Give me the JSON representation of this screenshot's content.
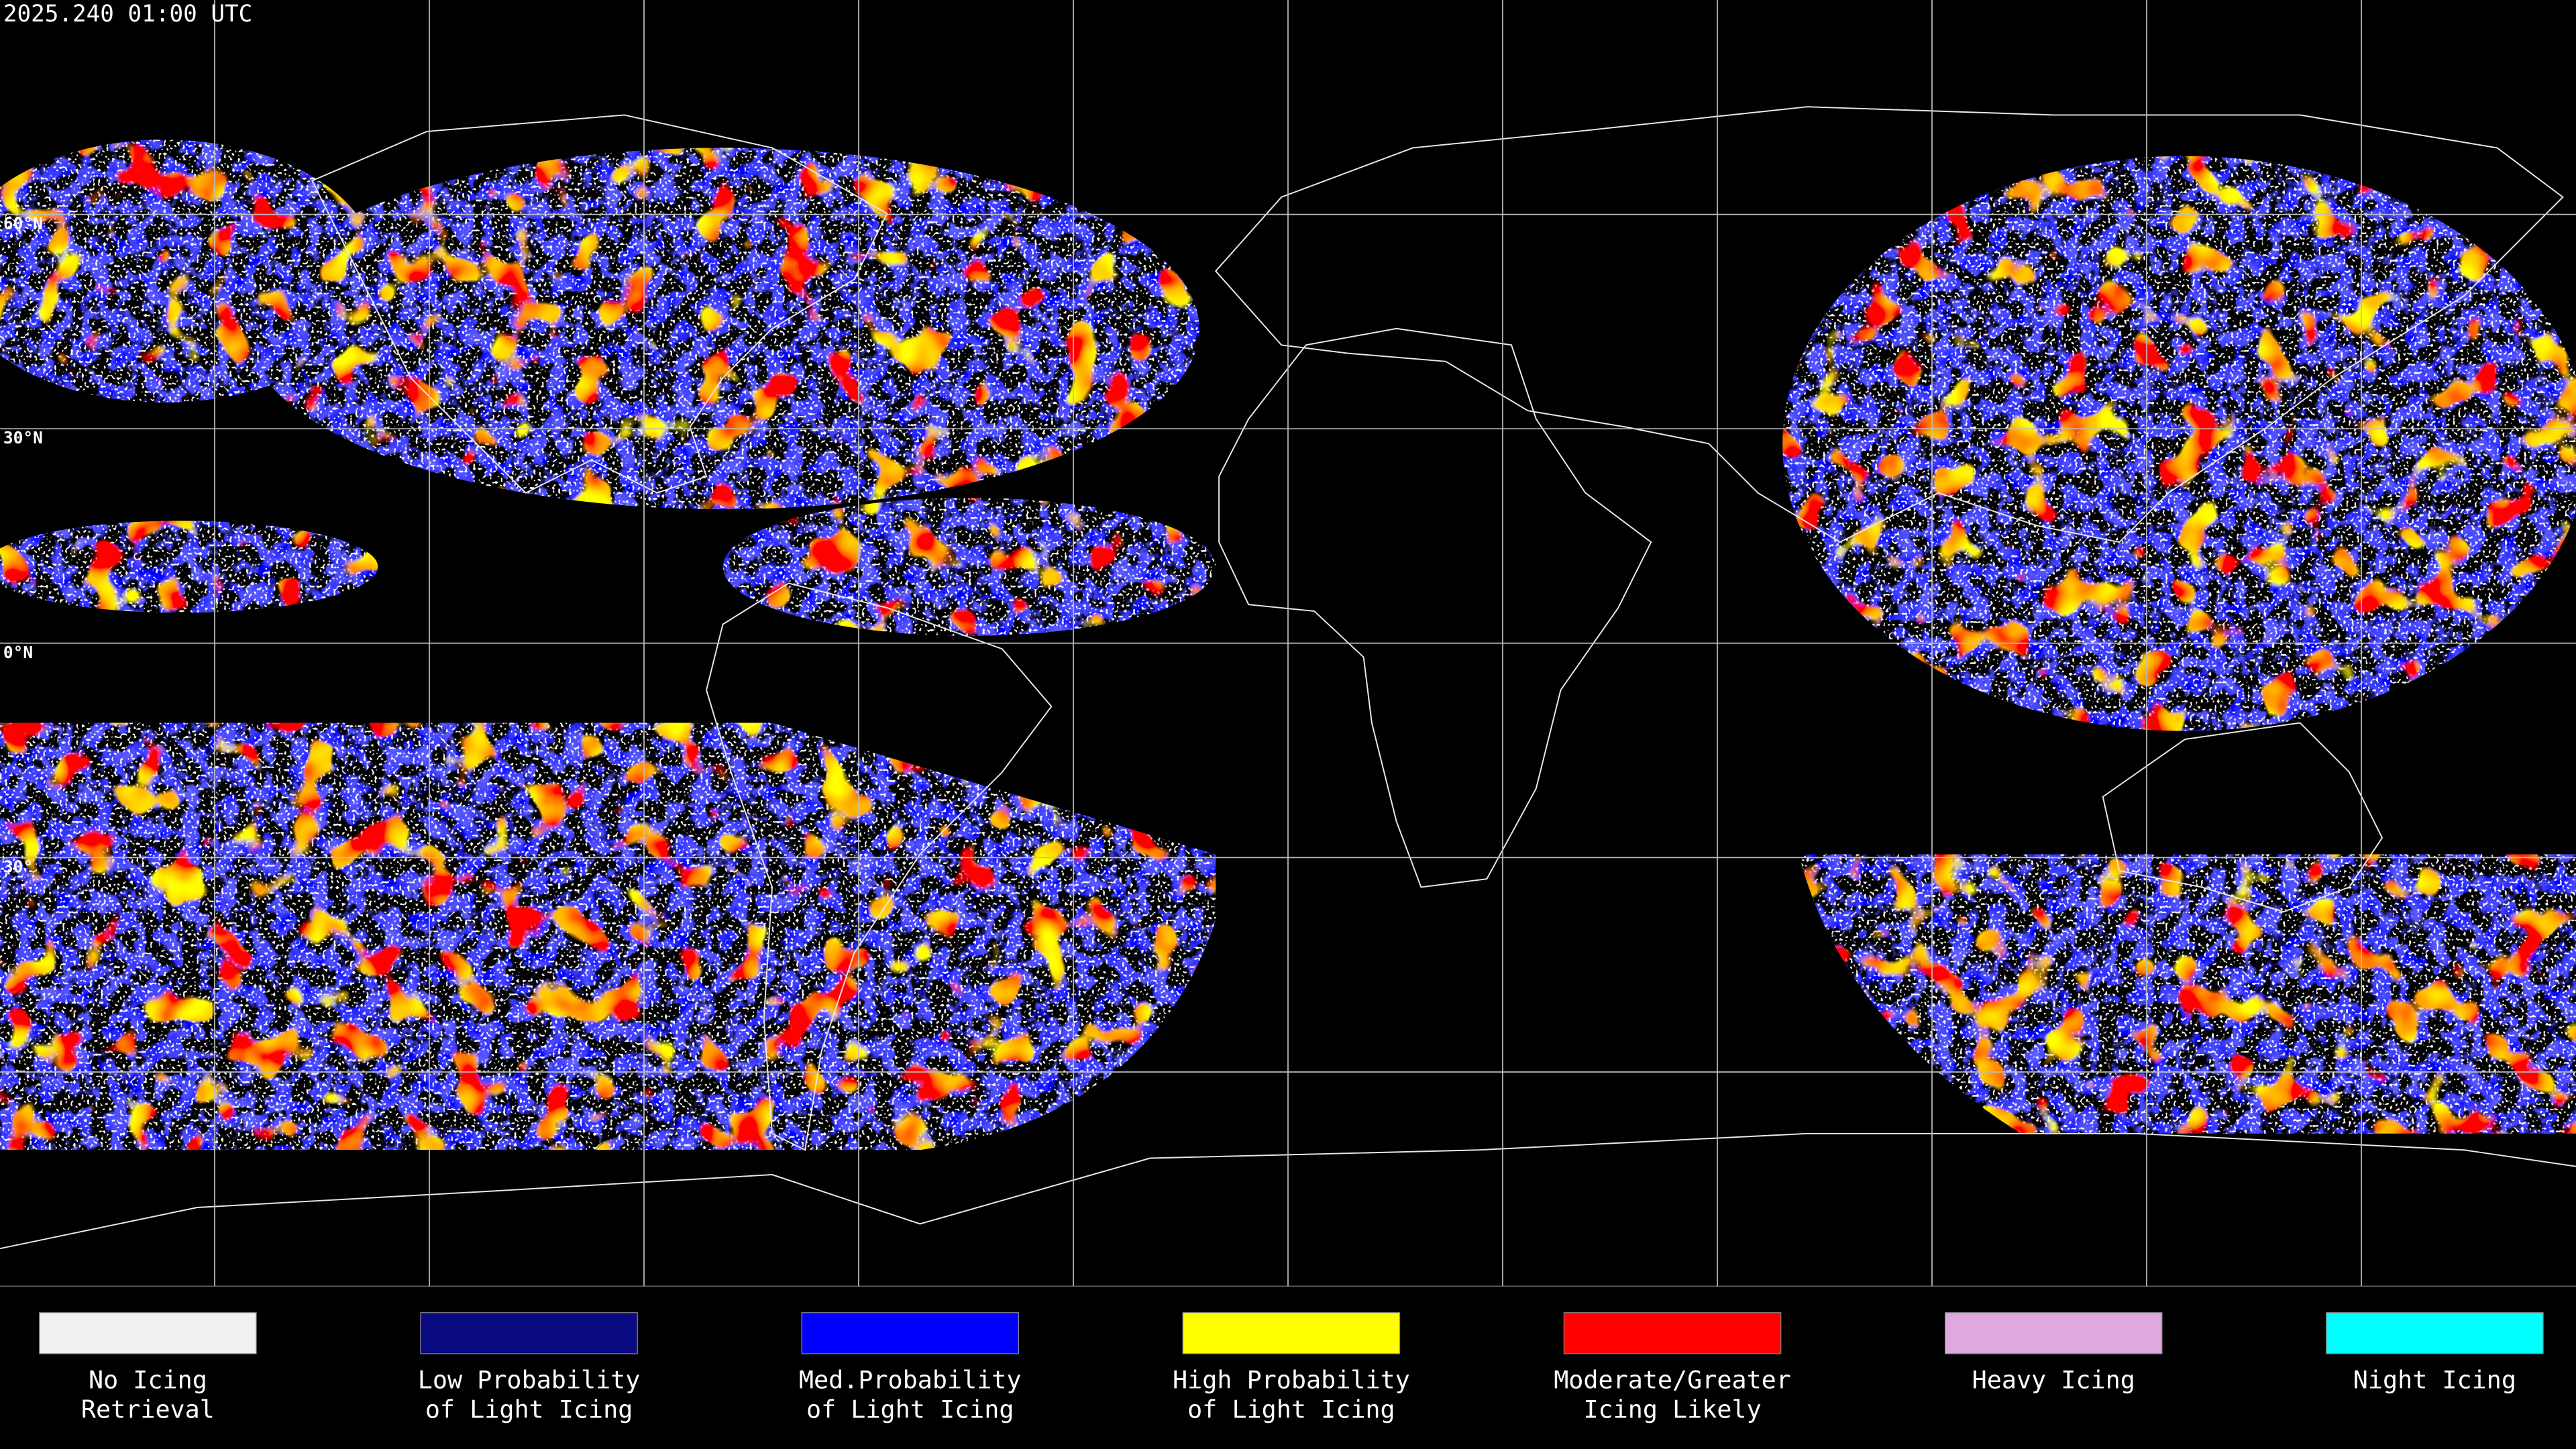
{
  "header": {
    "timestamp": "2025.240 01:00 UTC"
  },
  "map": {
    "latitude_labels": [
      "60°N",
      "30°N",
      "0°N",
      "30°"
    ]
  },
  "legend": {
    "items": [
      {
        "lines": [
          "No Icing",
          "Retrieval"
        ],
        "color": "#f0f0f0"
      },
      {
        "lines": [
          "Low Probability",
          "of Light Icing"
        ],
        "color": "#0a0a80"
      },
      {
        "lines": [
          "Med.Probability",
          "of Light Icing"
        ],
        "color": "#0000ff"
      },
      {
        "lines": [
          "High Probability",
          "of Light Icing"
        ],
        "color": "#ffff00"
      },
      {
        "lines": [
          "Moderate/Greater",
          "Icing Likely"
        ],
        "color": "#ff0000"
      },
      {
        "lines": [
          "Heavy Icing"
        ],
        "color": "#e0a8e0"
      },
      {
        "lines": [
          "Night Icing"
        ],
        "color": "#00ffff"
      }
    ]
  }
}
